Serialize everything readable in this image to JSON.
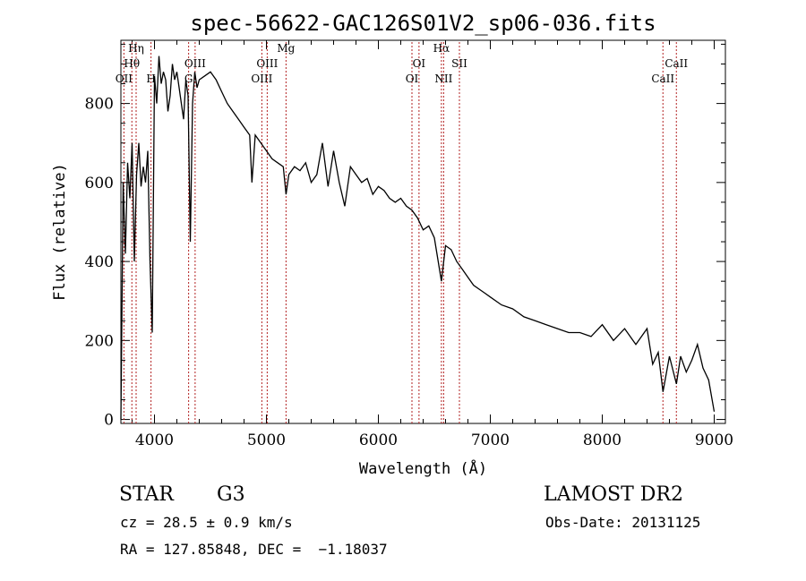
{
  "chart_data": {
    "type": "line",
    "title": "spec-56622-GAC126S01V2_sp06-036.fits",
    "xlabel": "Wavelength (Å)",
    "ylabel": "Flux (relative)",
    "xlim": [
      3700,
      9100
    ],
    "ylim": [
      -10,
      960
    ],
    "x_ticks": [
      4000,
      5000,
      6000,
      7000,
      8000,
      9000
    ],
    "y_ticks": [
      0,
      200,
      400,
      600,
      800
    ],
    "grid": false,
    "series": [
      {
        "x": [
          3700,
          3720,
          3740,
          3760,
          3780,
          3800,
          3820,
          3840,
          3860,
          3880,
          3900,
          3920,
          3940,
          3960,
          3980,
          4000,
          4020,
          4040,
          4060,
          4080,
          4100,
          4120,
          4140,
          4160,
          4180,
          4200,
          4220,
          4240,
          4260,
          4280,
          4300,
          4320,
          4340,
          4360,
          4380,
          4400,
          4450,
          4500,
          4550,
          4600,
          4650,
          4700,
          4750,
          4800,
          4850,
          4870,
          4900,
          4950,
          5000,
          5050,
          5100,
          5150,
          5175,
          5200,
          5250,
          5300,
          5350,
          5400,
          5450,
          5500,
          5550,
          5600,
          5650,
          5700,
          5750,
          5800,
          5850,
          5900,
          5950,
          6000,
          6050,
          6100,
          6150,
          6200,
          6250,
          6300,
          6350,
          6400,
          6450,
          6500,
          6563,
          6600,
          6650,
          6700,
          6750,
          6800,
          6850,
          6900,
          6950,
          7000,
          7100,
          7200,
          7300,
          7400,
          7500,
          7600,
          7700,
          7800,
          7900,
          8000,
          8100,
          8200,
          8300,
          8400,
          8450,
          8500,
          8542,
          8600,
          8662,
          8700,
          8750,
          8800,
          8850,
          8900,
          8950,
          9000
        ],
        "y": [
          0,
          600,
          420,
          650,
          560,
          700,
          400,
          620,
          700,
          590,
          640,
          600,
          680,
          400,
          220,
          870,
          800,
          920,
          850,
          880,
          860,
          780,
          820,
          900,
          860,
          880,
          840,
          800,
          760,
          860,
          820,
          450,
          800,
          880,
          840,
          860,
          870,
          880,
          860,
          830,
          800,
          780,
          760,
          740,
          720,
          600,
          720,
          700,
          680,
          660,
          650,
          640,
          570,
          620,
          640,
          630,
          650,
          600,
          620,
          700,
          590,
          680,
          600,
          540,
          640,
          620,
          600,
          610,
          570,
          590,
          580,
          560,
          550,
          560,
          540,
          530,
          510,
          480,
          490,
          460,
          350,
          440,
          430,
          400,
          380,
          360,
          340,
          330,
          320,
          310,
          290,
          280,
          260,
          250,
          240,
          230,
          220,
          220,
          210,
          240,
          200,
          230,
          190,
          230,
          140,
          170,
          70,
          160,
          90,
          160,
          120,
          150,
          190,
          130,
          100,
          20
        ],
        "color": "#000000"
      }
    ],
    "lines": [
      {
        "label": "OII",
        "x": 3727
      },
      {
        "label": "Hθ",
        "x": 3798
      },
      {
        "label": "Hη",
        "x": 3836
      },
      {
        "label": "H",
        "x": 3969
      },
      {
        "label": "G",
        "x": 4305
      },
      {
        "label": "OIII",
        "x": 4363
      },
      {
        "label": "OIII",
        "x": 4959
      },
      {
        "label": "OIII",
        "x": 5007
      },
      {
        "label": "Mg",
        "x": 5175
      },
      {
        "label": "OI",
        "x": 6300
      },
      {
        "label": "OI",
        "x": 6363
      },
      {
        "label": "Hα",
        "x": 6563
      },
      {
        "label": "NII",
        "x": 6583
      },
      {
        "label": "SII",
        "x": 6724
      },
      {
        "label": "CaII",
        "x": 8542
      },
      {
        "label": "CaII",
        "x": 8662
      }
    ],
    "line_color": "#b22222"
  },
  "footer": {
    "class_label": "STAR",
    "subclass": "G3",
    "survey": "LAMOST DR2",
    "cz_line": "cz = 28.5 ± 0.9 km/s",
    "obs_date": "Obs-Date: 20131125",
    "coords": "RA = 127.85848, DEC =  −1.18037"
  }
}
